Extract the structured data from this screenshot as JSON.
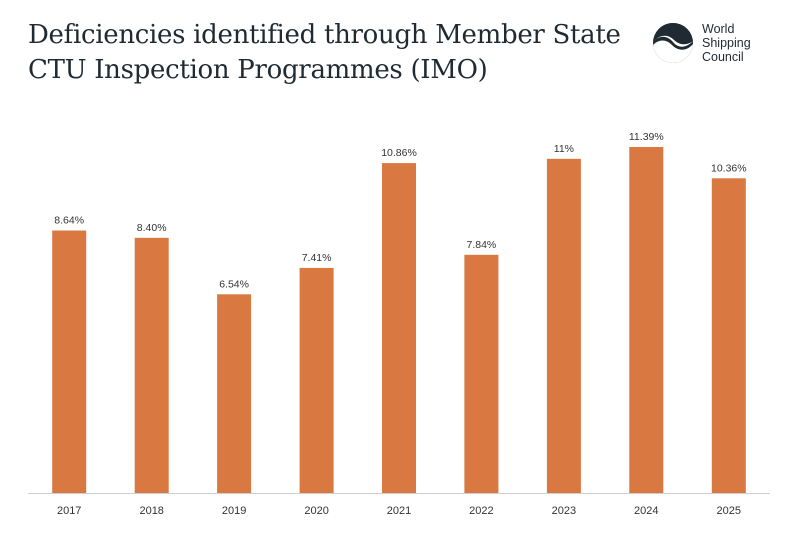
{
  "title": {
    "line1": "Deficiencies identified through Member State",
    "line2": "CTU Inspection Programmes (IMO)"
  },
  "logo": {
    "icon": "wave-circle-icon",
    "line1": "World",
    "line2": "Shipping",
    "line3": "Council"
  },
  "colors": {
    "bar": "#d97840",
    "axis": "#cfcfcf",
    "title": "#1f2a33"
  },
  "chart_data": {
    "type": "bar",
    "categories": [
      "2017",
      "2018",
      "2019",
      "2020",
      "2021",
      "2022",
      "2023",
      "2024",
      "2025"
    ],
    "values": [
      8.64,
      8.4,
      6.54,
      7.41,
      10.86,
      7.84,
      11,
      11.39,
      10.36
    ],
    "data_labels": [
      "8.64%",
      "8.40%",
      "6.54%",
      "7.41%",
      "10.86%",
      "7.84%",
      "11%",
      "11.39%",
      "10.36%"
    ],
    "title": "Deficiencies identified through Member State CTU Inspection Programmes (IMO)",
    "xlabel": "",
    "ylabel": "",
    "ylim": [
      0,
      11.39
    ],
    "grid": false,
    "legend": "none"
  }
}
